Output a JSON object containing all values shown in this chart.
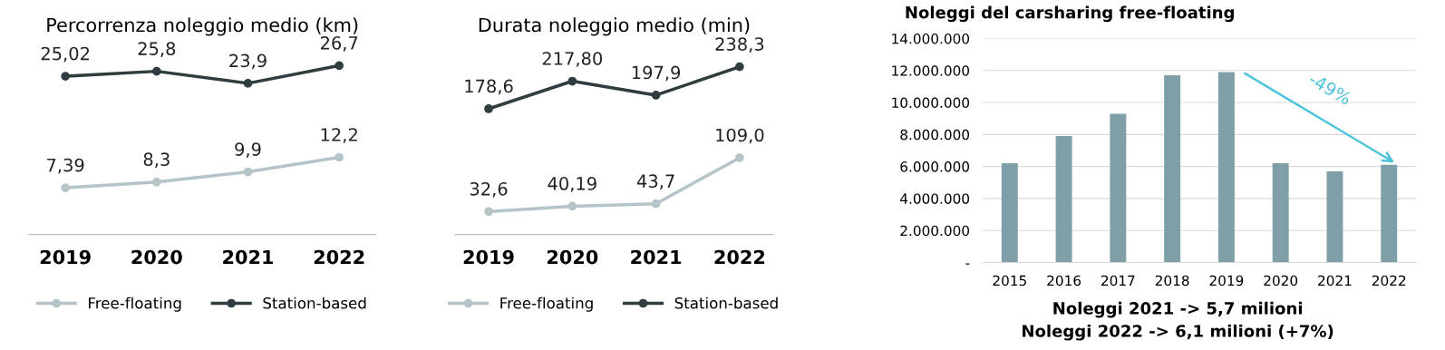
{
  "chart_data": [
    {
      "type": "line",
      "title": "Percorrenza noleggio medio (km)",
      "categories": [
        "2019",
        "2020",
        "2021",
        "2022"
      ],
      "tick_labels": "x",
      "marker": "circle",
      "legend": "bottom",
      "grid": false,
      "series": [
        {
          "name": "Free-floating",
          "color": "#b4c4c8",
          "values": [
            7.39,
            8.3,
            9.9,
            12.2
          ],
          "value_labels": [
            "7,39",
            "8,3",
            "9,9",
            "12,2"
          ]
        },
        {
          "name": "Station-based",
          "color": "#2f3c40",
          "values": [
            25.02,
            25.8,
            23.9,
            26.7
          ],
          "value_labels": [
            "25,02",
            "25,8",
            "23,9",
            "26,7"
          ]
        }
      ]
    },
    {
      "type": "line",
      "title": "Durata noleggio medio (min)",
      "categories": [
        "2019",
        "2020",
        "2021",
        "2022"
      ],
      "tick_labels": "x",
      "marker": "circle",
      "legend": "bottom",
      "grid": false,
      "series": [
        {
          "name": "Free-floating",
          "color": "#b4c4c8",
          "values": [
            32.6,
            40.19,
            43.7,
            109.0
          ],
          "value_labels": [
            "32,6",
            "40,19",
            "43,7",
            "109,0"
          ]
        },
        {
          "name": "Station-based",
          "color": "#2f3c40",
          "values": [
            178.6,
            217.8,
            197.9,
            238.3
          ],
          "value_labels": [
            "178,6",
            "217,80",
            "197,9",
            "238,3"
          ]
        }
      ]
    },
    {
      "type": "bar",
      "title": "Noleggi del carsharing free-floating",
      "categories": [
        "2015",
        "2016",
        "2017",
        "2018",
        "2019",
        "2020",
        "2021",
        "2022"
      ],
      "series": [
        {
          "color": "#7f9fa8",
          "values": [
            6200000,
            7900000,
            9300000,
            11700000,
            11900000,
            6200000,
            5700000,
            6100000
          ]
        }
      ],
      "ylim": [
        0,
        14000000
      ],
      "yticks": [
        {
          "value": 0,
          "label": "-"
        },
        {
          "value": 2000000,
          "label": "2.000.000"
        },
        {
          "value": 4000000,
          "label": "4.000.000"
        },
        {
          "value": 6000000,
          "label": "6.000.000"
        },
        {
          "value": 8000000,
          "label": "8.000.000"
        },
        {
          "value": 10000000,
          "label": "10.000.000"
        },
        {
          "value": 12000000,
          "label": "12.000.000"
        },
        {
          "value": 14000000,
          "label": "14.000.000"
        }
      ],
      "grid": "y",
      "annotations": [
        "-49%",
        "Noleggi 2021 -> 5,7 milioni",
        "Noleggi 2022 -> 6,1 milioni (+7%)"
      ]
    }
  ]
}
